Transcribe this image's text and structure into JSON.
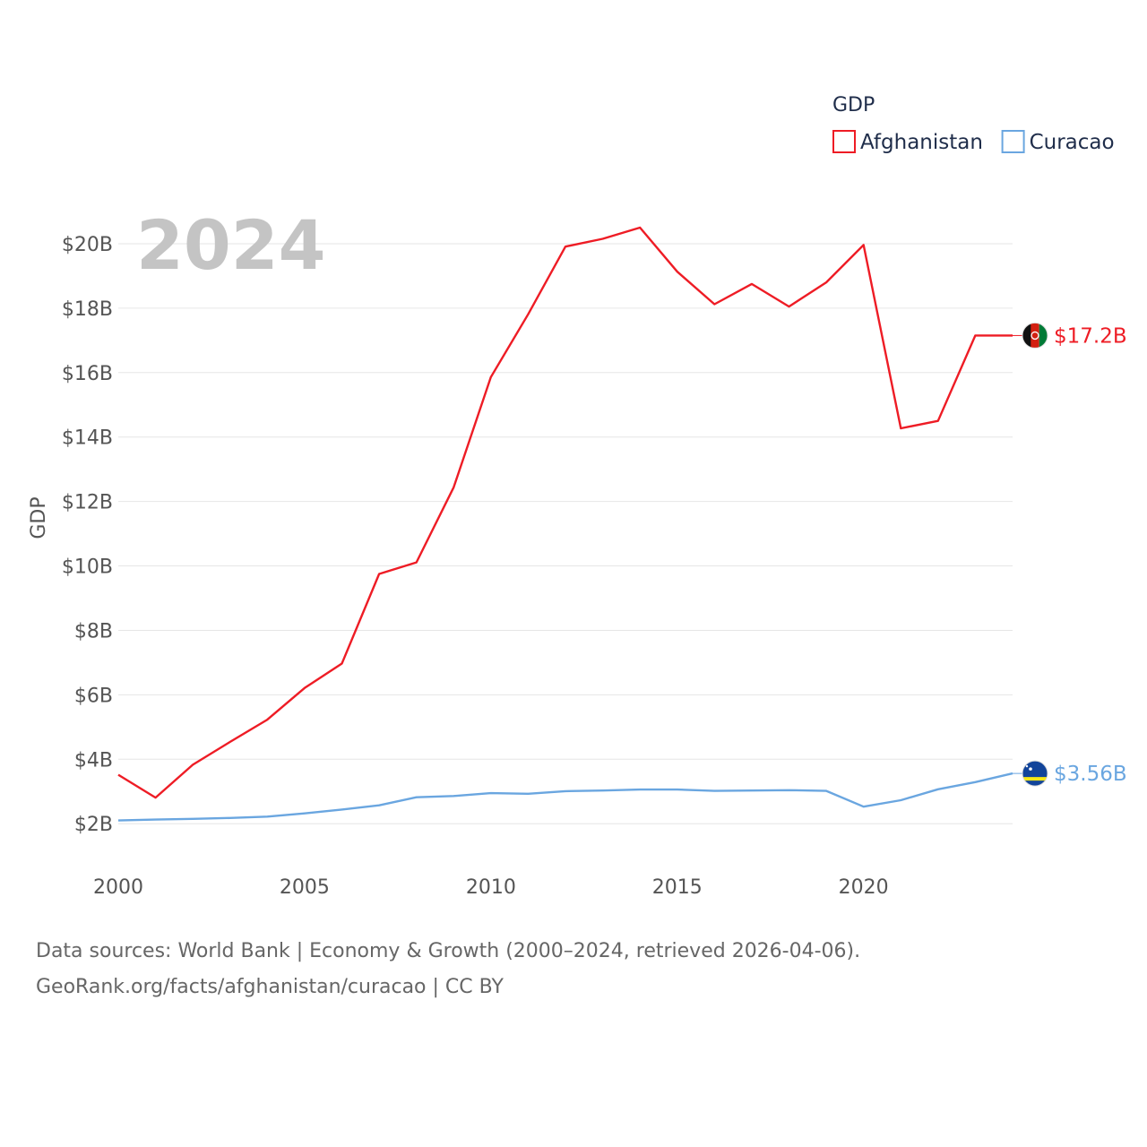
{
  "chart_data": {
    "type": "line",
    "title": "",
    "current_year_label": "2024",
    "xlabel": "",
    "ylabel": "GDP",
    "legend_title": "GDP",
    "legend_position": "top-right",
    "x": [
      2000,
      2001,
      2002,
      2003,
      2004,
      2005,
      2006,
      2007,
      2008,
      2009,
      2010,
      2011,
      2012,
      2013,
      2014,
      2015,
      2016,
      2017,
      2018,
      2019,
      2020,
      2021,
      2022,
      2023,
      2024
    ],
    "xlim": [
      2000,
      2024
    ],
    "ylim": [
      1.2,
      21.5
    ],
    "x_ticks": [
      2000,
      2005,
      2010,
      2015,
      2020
    ],
    "x_tick_labels": [
      "2000",
      "2005",
      "2010",
      "2015",
      "2020"
    ],
    "y_ticks": [
      2,
      4,
      6,
      8,
      10,
      12,
      14,
      16,
      18,
      20
    ],
    "y_tick_labels": [
      "$2B",
      "$4B",
      "$6B",
      "$8B",
      "$10B",
      "$12B",
      "$14B",
      "$16B",
      "$18B",
      "$20B"
    ],
    "grid": true,
    "series": [
      {
        "name": "Afghanistan",
        "color": "#ee1c25",
        "end_label": "$17.2B",
        "flag_icon": "afghanistan-flag-icon",
        "values": [
          3.52,
          2.81,
          3.83,
          4.54,
          5.23,
          6.21,
          6.97,
          9.75,
          10.11,
          12.44,
          15.86,
          17.81,
          19.91,
          20.15,
          20.5,
          19.13,
          18.12,
          18.75,
          18.05,
          18.8,
          19.96,
          14.27,
          14.5,
          17.15,
          17.15
        ]
      },
      {
        "name": "Curacao",
        "color": "#6aa6e0",
        "end_label": "$3.56B",
        "flag_icon": "curacao-flag-icon",
        "values": [
          2.1,
          2.13,
          2.15,
          2.18,
          2.22,
          2.32,
          2.44,
          2.57,
          2.82,
          2.86,
          2.95,
          2.93,
          3.01,
          3.03,
          3.06,
          3.06,
          3.02,
          3.03,
          3.04,
          3.02,
          2.53,
          2.73,
          3.07,
          3.29,
          3.56
        ]
      }
    ]
  },
  "footer": {
    "line1": "Data sources: World Bank | Economy & Growth (2000–2024, retrieved 2026-04-06).",
    "line2": "GeoRank.org/facts/afghanistan/curacao | CC BY"
  }
}
